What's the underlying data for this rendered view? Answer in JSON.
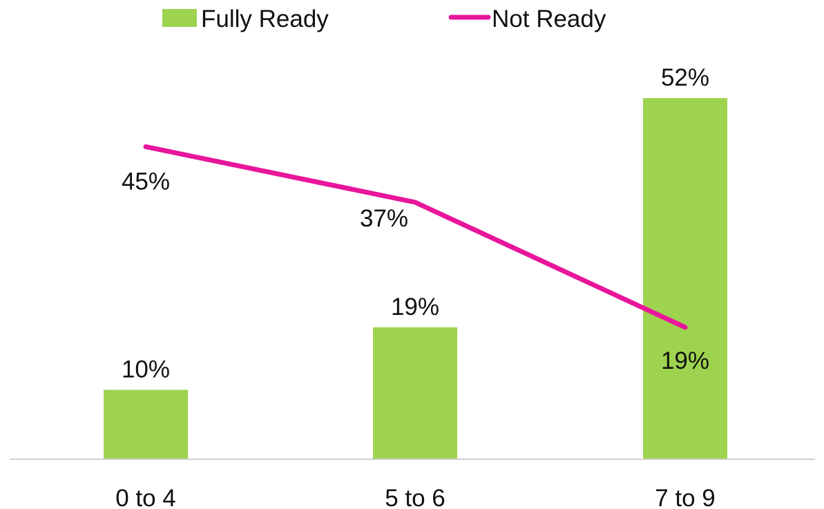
{
  "chart_data": {
    "type": "bar+line",
    "categories": [
      "0 to 4",
      "5 to 6",
      "7 to 9"
    ],
    "series": [
      {
        "name": "Fully Ready",
        "type": "bar",
        "values": [
          10,
          19,
          52
        ],
        "labels": [
          "10%",
          "19%",
          "52%"
        ],
        "color": "#9ED34F"
      },
      {
        "name": "Not Ready",
        "type": "line",
        "values": [
          45,
          37,
          19
        ],
        "labels": [
          "45%",
          "37%",
          "19%"
        ],
        "color": "#E8169B"
      }
    ],
    "ylim": [
      0,
      58
    ],
    "grid": false,
    "legend": "top-center",
    "axis_color": "#D0D0D0"
  }
}
